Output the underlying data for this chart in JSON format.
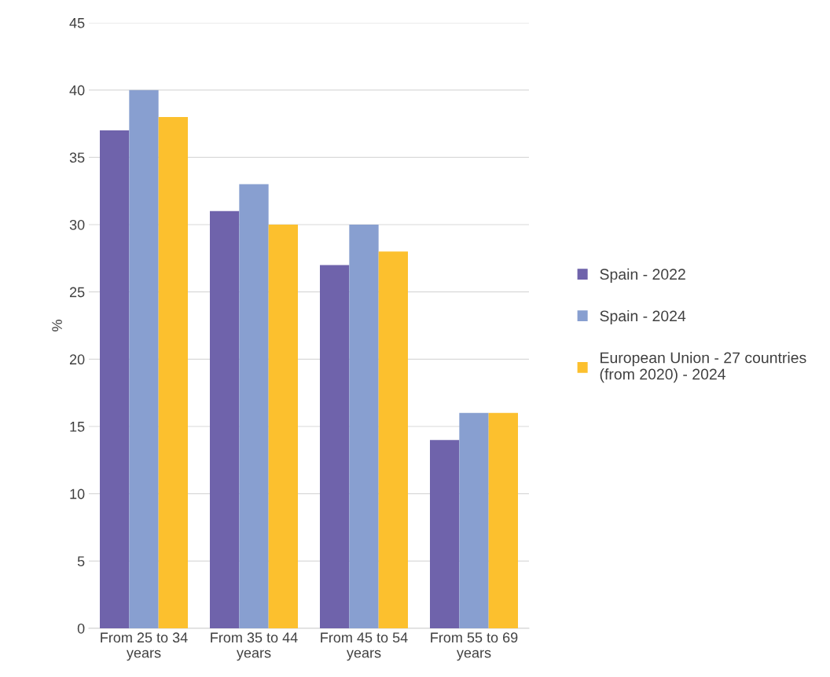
{
  "chart_data": {
    "type": "bar",
    "ylabel": "%",
    "categories": [
      "From 25 to 34 years",
      "From 35 to 44 years",
      "From 45 to 54 years",
      "From 55 to 69 years"
    ],
    "series": [
      {
        "name": "Spain - 2022",
        "color": "#6f63ab",
        "values": [
          37,
          31,
          27,
          14
        ]
      },
      {
        "name": "Spain - 2024",
        "color": "#889fd0",
        "values": [
          40,
          33,
          30,
          16
        ]
      },
      {
        "name": "European Union - 27 countries (from 2020) - 2024",
        "color": "#fcc02e",
        "values": [
          38,
          30,
          28,
          16
        ]
      }
    ],
    "ylim": [
      0,
      45
    ],
    "yticks": [
      0,
      5,
      10,
      15,
      20,
      25,
      30,
      35,
      40,
      45
    ],
    "grid": "y",
    "legend": "right"
  }
}
